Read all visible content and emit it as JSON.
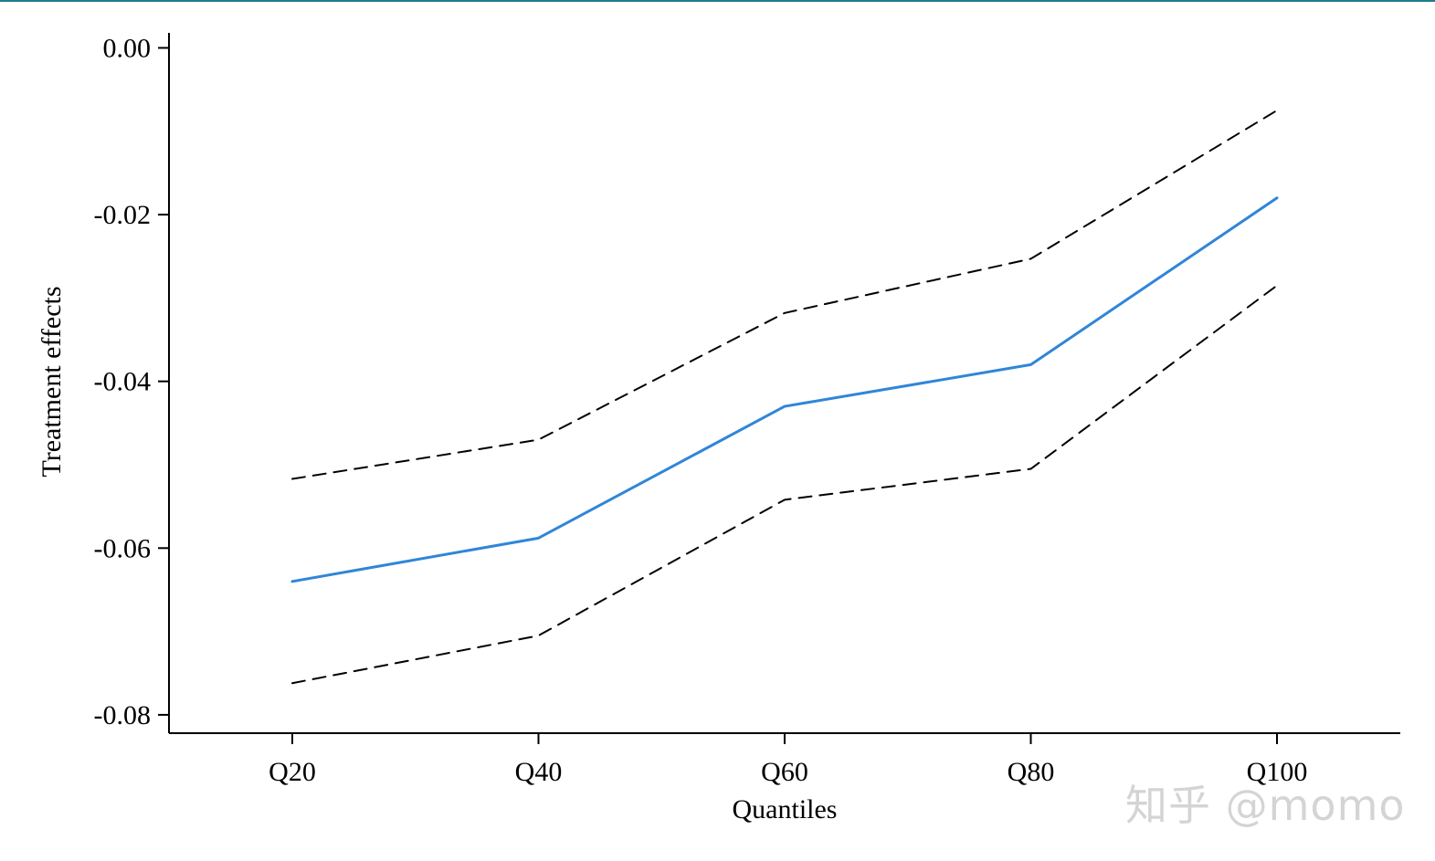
{
  "chart_data": {
    "type": "line",
    "categories": [
      "Q20",
      "Q40",
      "Q60",
      "Q80",
      "Q100"
    ],
    "series": [
      {
        "values": [
          -0.064,
          -0.0588,
          -0.043,
          -0.038,
          -0.018
        ],
        "style": "solid",
        "color": "#2f86d8"
      },
      {
        "values": [
          -0.0517,
          -0.047,
          -0.0318,
          -0.0253,
          -0.0075
        ],
        "style": "dashed",
        "color": "#000000"
      },
      {
        "values": [
          -0.0762,
          -0.0705,
          -0.0542,
          -0.0505,
          -0.0285
        ],
        "style": "dashed",
        "color": "#000000"
      }
    ],
    "yticks": [
      0.0,
      -0.02,
      -0.04,
      -0.06,
      -0.08
    ],
    "ytick_labels": [
      "0.00",
      "-0.02",
      "-0.04",
      "-0.06",
      "-0.08"
    ],
    "ylim": [
      -0.0822,
      0.0018
    ],
    "xlabel": "Quantiles",
    "ylabel": "Treatment effects",
    "grid": false,
    "legend": "none"
  },
  "frame": {
    "top_rule_color": "#1d7d8c"
  },
  "watermark": {
    "text": "知乎 @momo"
  }
}
